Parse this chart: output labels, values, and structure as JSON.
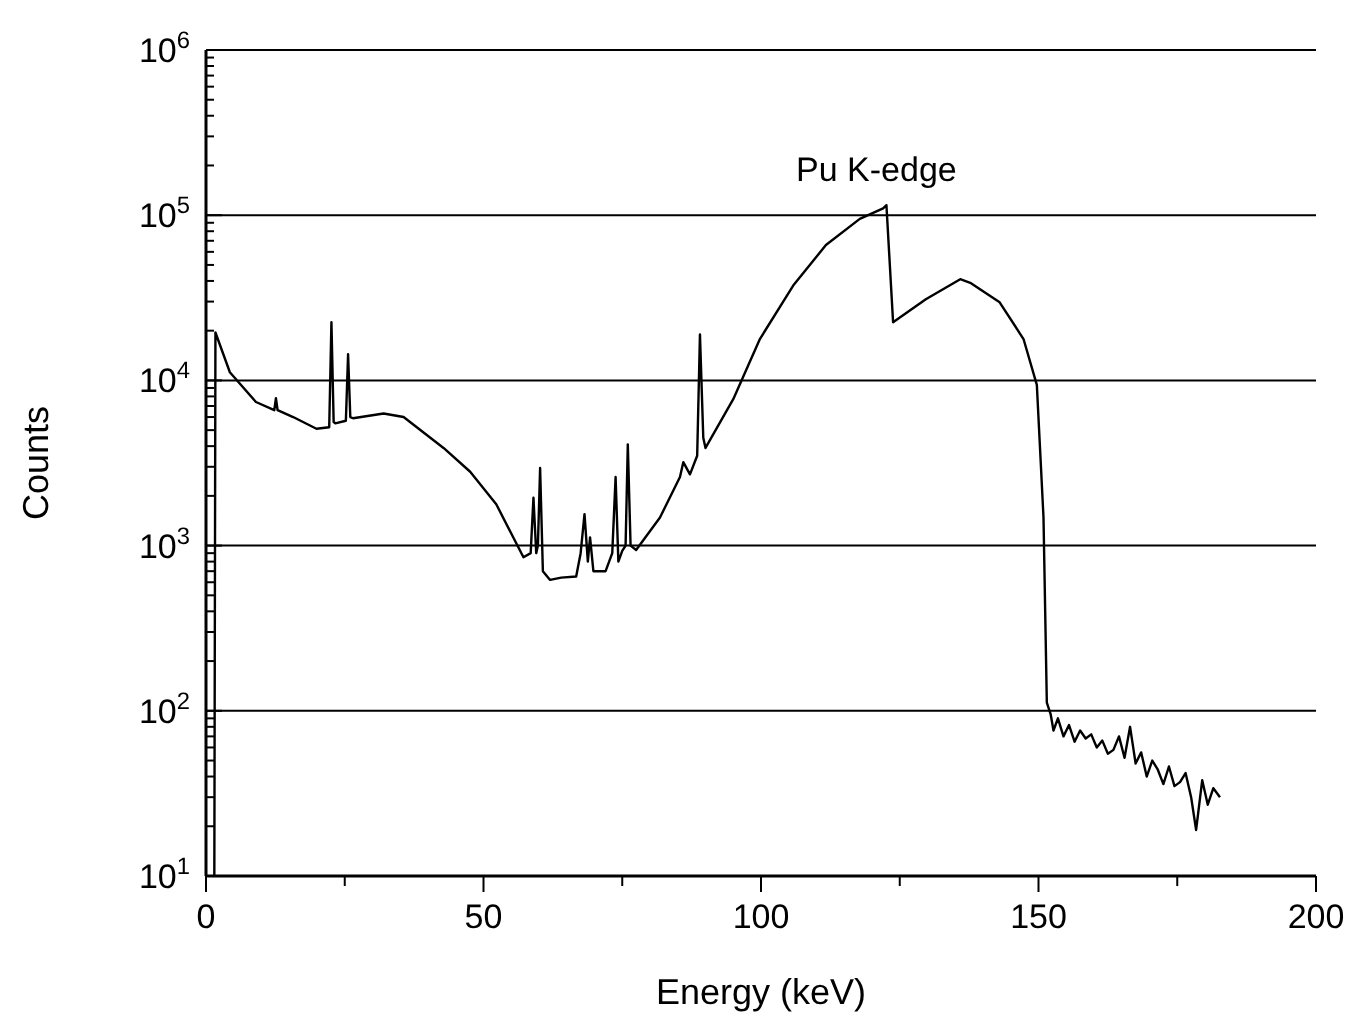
{
  "chart_data": {
    "type": "line",
    "xlabel": "Energy (keV)",
    "ylabel": "Counts",
    "log": "y",
    "grid": "y",
    "marker": "none",
    "line_style": "solid",
    "xlim": [
      0,
      200
    ],
    "ylim": [
      10,
      1000000
    ],
    "xticks": [
      0,
      {
        "value": 25,
        "label": null
      },
      50,
      {
        "value": 75,
        "label": null
      },
      100,
      {
        "value": 125,
        "label": null
      },
      150,
      {
        "value": 175,
        "label": null
      },
      200
    ],
    "yticks": [
      {
        "value": 10,
        "label": "10$^{1}$"
      },
      {
        "value": 20,
        "label": null
      },
      {
        "value": 30,
        "label": null
      },
      {
        "value": 40,
        "label": null
      },
      {
        "value": 50,
        "label": null
      },
      {
        "value": 60,
        "label": null
      },
      {
        "value": 70,
        "label": null
      },
      {
        "value": 80,
        "label": null
      },
      {
        "value": 90,
        "label": null
      },
      {
        "value": 100,
        "label": "10$^{2}$"
      },
      {
        "value": 200,
        "label": null
      },
      {
        "value": 300,
        "label": null
      },
      {
        "value": 400,
        "label": null
      },
      {
        "value": 500,
        "label": null
      },
      {
        "value": 600,
        "label": null
      },
      {
        "value": 700,
        "label": null
      },
      {
        "value": 800,
        "label": null
      },
      {
        "value": 900,
        "label": null
      },
      {
        "value": 1000,
        "label": "10$^{3}$"
      },
      {
        "value": 2000,
        "label": null
      },
      {
        "value": 3000,
        "label": null
      },
      {
        "value": 4000,
        "label": null
      },
      {
        "value": 5000,
        "label": null
      },
      {
        "value": 6000,
        "label": null
      },
      {
        "value": 7000,
        "label": null
      },
      {
        "value": 8000,
        "label": null
      },
      {
        "value": 9000,
        "label": null
      },
      {
        "value": 10000,
        "label": "10$^{4}$"
      },
      {
        "value": 20000,
        "label": null
      },
      {
        "value": 30000,
        "label": null
      },
      {
        "value": 40000,
        "label": null
      },
      {
        "value": 50000,
        "label": null
      },
      {
        "value": 60000,
        "label": null
      },
      {
        "value": 70000,
        "label": null
      },
      {
        "value": 80000,
        "label": null
      },
      {
        "value": 90000,
        "label": null
      },
      {
        "value": 100000,
        "label": "10$^{5}$"
      },
      {
        "value": 200000,
        "label": null
      },
      {
        "value": 300000,
        "label": null
      },
      {
        "value": 400000,
        "label": null
      },
      {
        "value": 500000,
        "label": null
      },
      {
        "value": 600000,
        "label": null
      },
      {
        "value": 700000,
        "label": null
      },
      {
        "value": 800000,
        "label": null
      },
      {
        "value": 900000,
        "label": null
      },
      {
        "value": 1000000,
        "label": "10$^{6}$"
      }
    ],
    "annotations": [
      "Pu K-edge"
    ],
    "series": [
      {
        "color": "#000000",
        "x": [
          1.5,
          1.7,
          4.3,
          9,
          12.3,
          12.6,
          12.9,
          15.7,
          19.9,
          22.2,
          22.6,
          23.0,
          23.3,
          25.2,
          25.6,
          26.0,
          26.5,
          32,
          35.6,
          42.8,
          47.6,
          52.3,
          57.2,
          58.5,
          59,
          59.5,
          59.8,
          60.2,
          60.7,
          62,
          64,
          66.7,
          67.5,
          68.2,
          68.8,
          69.2,
          69.8,
          72,
          73.2,
          73.8,
          74.3,
          75,
          75.6,
          76,
          76.5,
          77.5,
          81.8,
          85.4,
          86,
          87.2,
          88.5,
          89,
          89.6,
          90,
          95,
          99.8,
          105.8,
          111.7,
          117.8,
          122,
          122.6,
          123.8,
          129.7,
          135.9,
          137.7,
          143,
          147.3,
          149.7,
          150.9,
          151.5,
          152.2,
          152.7,
          153.5,
          154.5,
          155.5,
          156.5,
          157.5,
          158.5,
          159.5,
          160.5,
          161.5,
          162.5,
          163.5,
          164.5,
          165.5,
          166.5,
          167.5,
          168.5,
          169.5,
          170.5,
          171.5,
          172.5,
          173.5,
          174.5,
          175.5,
          176.5,
          177.5,
          178.4,
          179.5,
          180.5,
          181.5,
          182.7
        ],
        "values": [
          10,
          19500,
          11200,
          7400,
          6600,
          7800,
          6600,
          6000,
          5100,
          5200,
          22500,
          5600,
          5500,
          5700,
          14400,
          6000,
          5900,
          6300,
          6000,
          3900,
          2800,
          1780,
          850,
          900,
          1950,
          900,
          1000,
          2950,
          700,
          620,
          640,
          650,
          900,
          1550,
          800,
          1120,
          700,
          700,
          900,
          2600,
          800,
          930,
          1000,
          4100,
          1000,
          940,
          1480,
          2600,
          3200,
          2700,
          3500,
          19000,
          4500,
          3900,
          7700,
          17800,
          37500,
          66000,
          95000,
          110000,
          115000,
          22500,
          31000,
          41000,
          39000,
          29700,
          17800,
          9400,
          1480,
          112,
          95,
          76,
          90,
          70,
          82,
          65,
          76,
          68,
          72,
          60,
          66,
          55,
          58,
          70,
          52,
          80,
          48,
          56,
          40,
          50,
          44,
          36,
          46,
          35,
          37,
          42,
          30,
          19,
          38,
          27,
          34,
          30
        ]
      }
    ]
  }
}
